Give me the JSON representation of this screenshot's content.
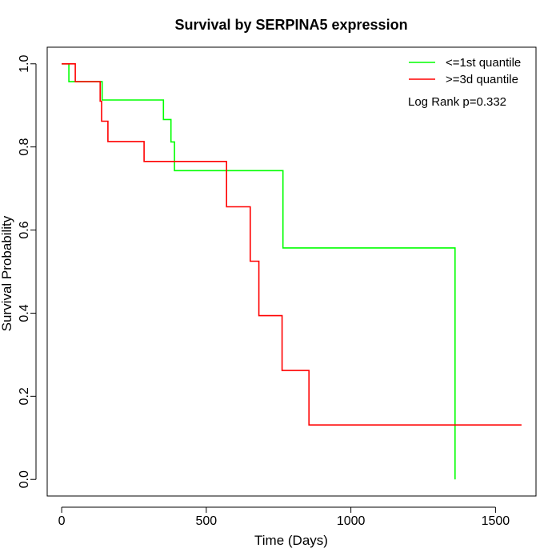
{
  "chart_data": {
    "type": "line",
    "title": "Survival by SERPINA5 expression",
    "xlabel": "Time (Days)",
    "ylabel": "Survival Probability",
    "xlim": [
      -50,
      1640
    ],
    "ylim": [
      -0.04,
      1.04
    ],
    "x_ticks": [
      0,
      500,
      1000,
      1500
    ],
    "y_ticks": [
      0.0,
      0.2,
      0.4,
      0.6,
      0.8,
      1.0
    ],
    "x_tick_labels": [
      "0",
      "500",
      "1000",
      "1500"
    ],
    "y_tick_labels": [
      "0.0",
      "0.2",
      "0.4",
      "0.6",
      "0.8",
      "1.0"
    ],
    "grid": false,
    "legend_position": "top-right",
    "annotation": "Log Rank p=0.332",
    "series": [
      {
        "name": "<=1st quantile",
        "color": "#00ff00",
        "x": [
          0,
          25,
          25,
          140,
          140,
          352,
          352,
          378,
          378,
          390,
          390,
          765,
          765,
          1360,
          1360
        ],
        "y": [
          1.0,
          1.0,
          0.957,
          0.957,
          0.913,
          0.913,
          0.866,
          0.866,
          0.812,
          0.812,
          0.743,
          0.743,
          0.557,
          0.557,
          0.0
        ]
      },
      {
        "name": ">=3d quantile",
        "color": "#ff0000",
        "x": [
          0,
          47,
          47,
          133,
          133,
          138,
          138,
          160,
          160,
          285,
          285,
          570,
          570,
          652,
          652,
          682,
          682,
          762,
          762,
          855,
          855,
          1590
        ],
        "y": [
          1.0,
          1.0,
          0.957,
          0.957,
          0.91,
          0.91,
          0.862,
          0.862,
          0.813,
          0.813,
          0.765,
          0.765,
          0.656,
          0.656,
          0.525,
          0.525,
          0.394,
          0.394,
          0.262,
          0.262,
          0.131,
          0.131
        ]
      }
    ]
  }
}
